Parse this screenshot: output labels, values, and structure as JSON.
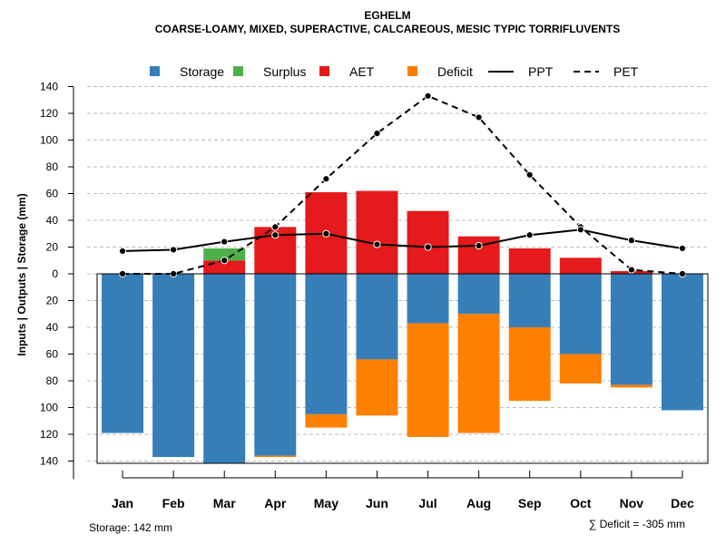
{
  "chart_data": {
    "type": "bar",
    "title": "EGHELM",
    "subtitle": "COARSE-LOAMY, MIXED, SUPERACTIVE, CALCAREOUS, MESIC TYPIC TORRIFLUVENTS",
    "ylabel": "Inputs | Outputs | Storage    (mm)",
    "xlabel": "",
    "categories": [
      "Jan",
      "Feb",
      "Mar",
      "Apr",
      "May",
      "Jun",
      "Jul",
      "Aug",
      "Sep",
      "Oct",
      "Nov",
      "Dec"
    ],
    "ylim": [
      -140,
      140
    ],
    "y_ticks": [
      140,
      120,
      100,
      80,
      60,
      40,
      20,
      0,
      20,
      40,
      60,
      80,
      100,
      120,
      140
    ],
    "legend": {
      "placement": "top",
      "items": [
        {
          "label": "Storage",
          "kind": "box",
          "color": "#377EB8"
        },
        {
          "label": "Surplus",
          "kind": "box",
          "color": "#4DAF4A"
        },
        {
          "label": "AET",
          "kind": "box",
          "color": "#E41A1C"
        },
        {
          "label": "Deficit",
          "kind": "box",
          "color": "#FF7F00"
        },
        {
          "label": "PPT",
          "kind": "solid-line",
          "color": "#000000"
        },
        {
          "label": "PET",
          "kind": "dashed-line",
          "color": "#000000"
        }
      ]
    },
    "series": [
      {
        "name": "AET",
        "color": "#E41A1C",
        "values": [
          0,
          0,
          10,
          35,
          61,
          62,
          47,
          28,
          19,
          12,
          2,
          0
        ]
      },
      {
        "name": "Surplus",
        "color": "#4DAF4A",
        "values": [
          0,
          0,
          9,
          0,
          0,
          0,
          0,
          0,
          0,
          0,
          0,
          0
        ]
      },
      {
        "name": "Storage",
        "color": "#377EB8",
        "values": [
          119,
          137,
          142,
          136,
          105,
          64,
          37,
          30,
          40,
          60,
          83,
          102
        ]
      },
      {
        "name": "Deficit",
        "color": "#FF7F00",
        "values": [
          0,
          0,
          0,
          1,
          10,
          42,
          85,
          89,
          55,
          22,
          2,
          0
        ]
      },
      {
        "name": "PPT",
        "color": "#000000",
        "style": "solid",
        "values": [
          17,
          18,
          24,
          29,
          30,
          22,
          20,
          21,
          29,
          33,
          25,
          19
        ]
      },
      {
        "name": "PET",
        "color": "#000000",
        "style": "dashed",
        "values": [
          0,
          0,
          10,
          35,
          71,
          105,
          133,
          117,
          74,
          35,
          3,
          0
        ]
      }
    ],
    "grid": true,
    "footer_left": "Storage: 142 mm",
    "footer_right": "∑ Deficit = -305 mm"
  }
}
